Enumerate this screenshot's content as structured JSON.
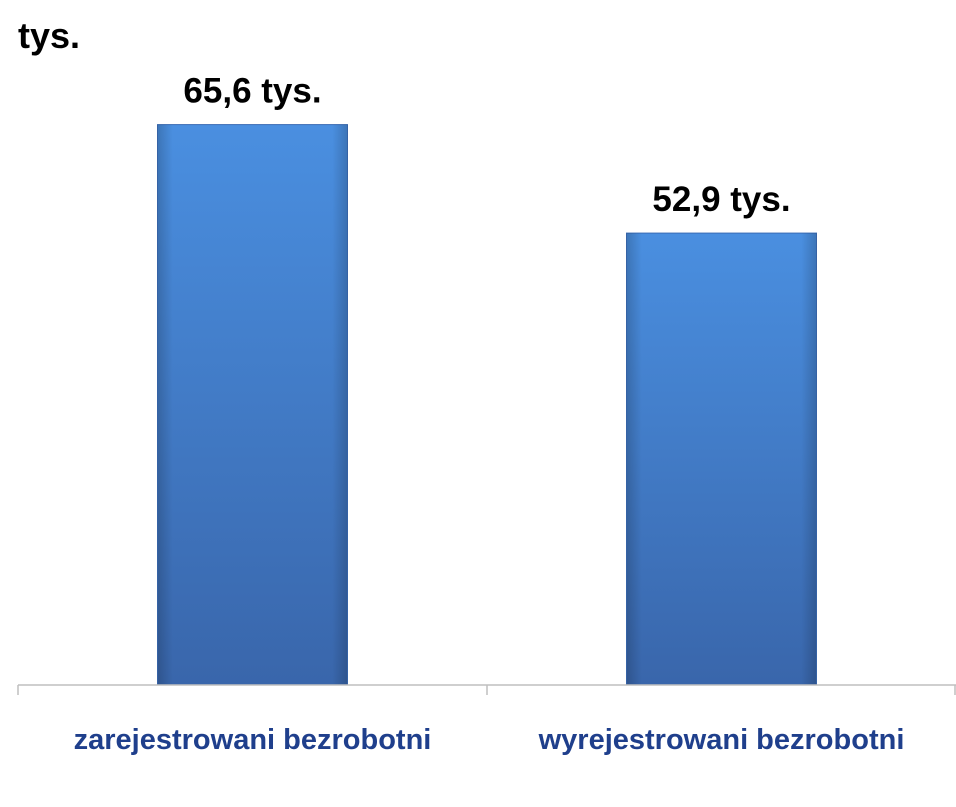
{
  "chart_data": {
    "type": "bar",
    "y_label": "tys.",
    "categories": [
      "zarejestrowani bezrobotni",
      "wyrejestrowani bezrobotni"
    ],
    "values": [
      65.6,
      52.9
    ],
    "value_labels": [
      "65,6 tys.",
      "52,9 tys."
    ],
    "color": "#4285d6",
    "ylim": [
      0,
      70
    ]
  }
}
